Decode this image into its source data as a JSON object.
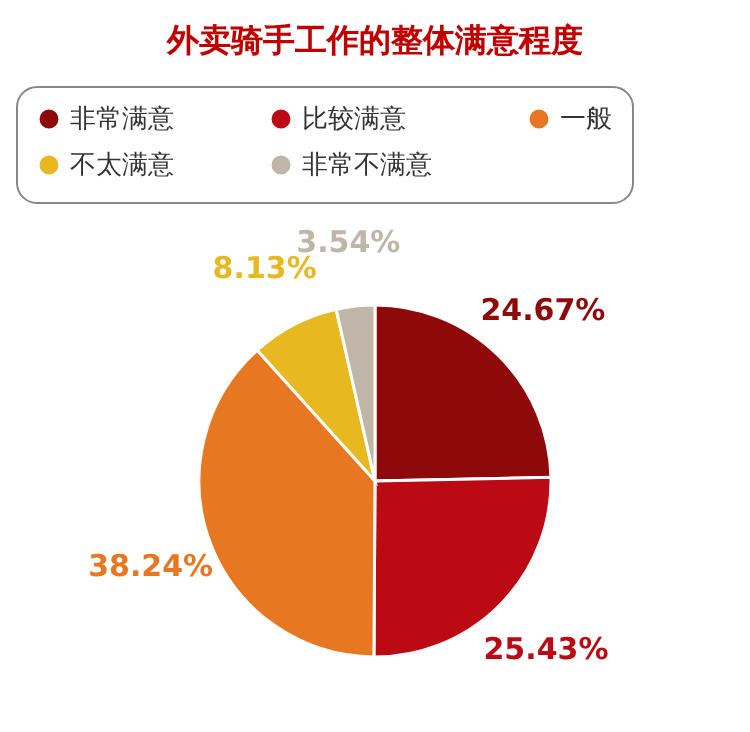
{
  "chart_data": {
    "type": "pie",
    "title": "外卖骑手工作的整体满意程度",
    "categories": [
      "非常满意",
      "比较满意",
      "一般",
      "不太满意",
      "非常不满意"
    ],
    "values": [
      24.67,
      25.43,
      38.24,
      8.13,
      3.54
    ],
    "colors": [
      "#8e0a0a",
      "#bb0a14",
      "#e87722",
      "#e8b820",
      "#bfb5a8"
    ],
    "value_labels": [
      "24.67%",
      "25.43%",
      "38.24%",
      "8.13%",
      "3.54%"
    ],
    "legend": "top"
  }
}
